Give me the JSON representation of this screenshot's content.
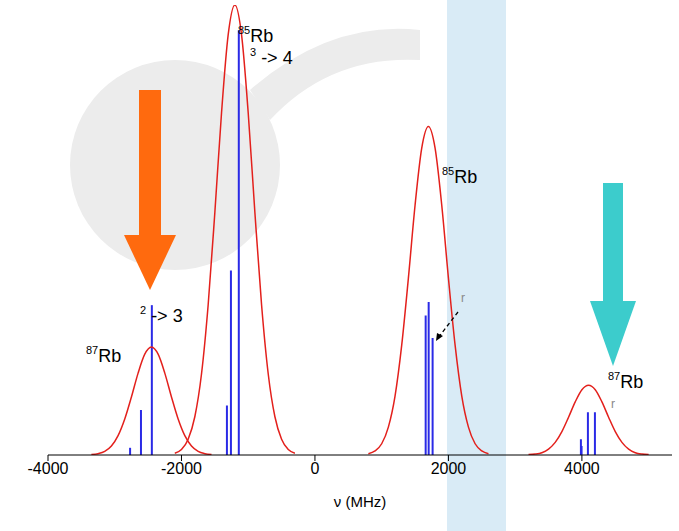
{
  "chart_data": {
    "type": "line",
    "xlabel": "ν (MHz)",
    "xlim": [
      -4000,
      5350
    ],
    "xticks": [
      -4000,
      -2000,
      0,
      2000,
      4000
    ],
    "ylim": [
      0,
      1
    ],
    "yticks": [],
    "tick_labels": "x",
    "grid": false,
    "series": [
      {
        "type": "line",
        "color": "#e3201c",
        "x": [
          -3350,
          -3250,
          -3150,
          -3050,
          -2950,
          -2850,
          -2750,
          -2650,
          -2550,
          -2450,
          -2350,
          -2250,
          -2150,
          -2050,
          -1950,
          -1850,
          -1750,
          -1650,
          -1550
        ],
        "values": [
          0.001,
          0.003,
          0.008,
          0.02,
          0.043,
          0.08,
          0.129,
          0.182,
          0.224,
          0.24,
          0.224,
          0.182,
          0.129,
          0.08,
          0.043,
          0.02,
          0.008,
          0.003,
          0.001
        ]
      },
      {
        "type": "line",
        "color": "#e3201c",
        "x": [
          -2100,
          -2000,
          -1900,
          -1800,
          -1700,
          -1600,
          -1500,
          -1400,
          -1300,
          -1200,
          -1100,
          -1000,
          -900,
          -800,
          -700,
          -600,
          -500,
          -400,
          -300
        ],
        "values": [
          0.004,
          0.012,
          0.035,
          0.085,
          0.18,
          0.334,
          0.539,
          0.76,
          0.934,
          1,
          0.934,
          0.76,
          0.539,
          0.334,
          0.18,
          0.085,
          0.035,
          0.012,
          0.004
        ]
      },
      {
        "type": "line",
        "color": "#e3201c",
        "x": [
          800,
          900,
          1000,
          1100,
          1200,
          1300,
          1400,
          1500,
          1600,
          1700,
          1800,
          1900,
          2000,
          2100,
          2200,
          2300,
          2400,
          2500,
          2600
        ],
        "values": [
          0.003,
          0.009,
          0.025,
          0.062,
          0.131,
          0.244,
          0.393,
          0.555,
          0.682,
          0.73,
          0.682,
          0.555,
          0.393,
          0.244,
          0.131,
          0.062,
          0.025,
          0.009,
          0.003
        ]
      },
      {
        "type": "line",
        "color": "#e3201c",
        "x": [
          3200,
          3300,
          3400,
          3500,
          3600,
          3700,
          3800,
          3900,
          4000,
          4100,
          4200,
          4300,
          4400,
          4500,
          4600,
          4700,
          4800,
          4900,
          5000
        ],
        "values": [
          0.001,
          0.002,
          0.005,
          0.013,
          0.028,
          0.052,
          0.084,
          0.118,
          0.145,
          0.155,
          0.145,
          0.118,
          0.084,
          0.052,
          0.028,
          0.013,
          0.005,
          0.002,
          0.001
        ]
      },
      {
        "type": "stick",
        "color": "#2a2ae6",
        "x": [
          -2770,
          -2607,
          -2444,
          -1319,
          -1259,
          -1141,
          1659,
          1704,
          1763,
          3985,
          3995,
          4090,
          4195
        ],
        "values": [
          0.016,
          0.1,
          0.333,
          0.11,
          0.41,
          0.944,
          0.31,
          0.34,
          0.26,
          0.035,
          0.02,
          0.095,
          0.095
        ]
      }
    ],
    "annotations": [
      "85Rb",
      "3 -> 4",
      "85Rb",
      "r",
      "2 -> 3",
      "87Rb",
      "87Rb",
      "r"
    ]
  }
}
